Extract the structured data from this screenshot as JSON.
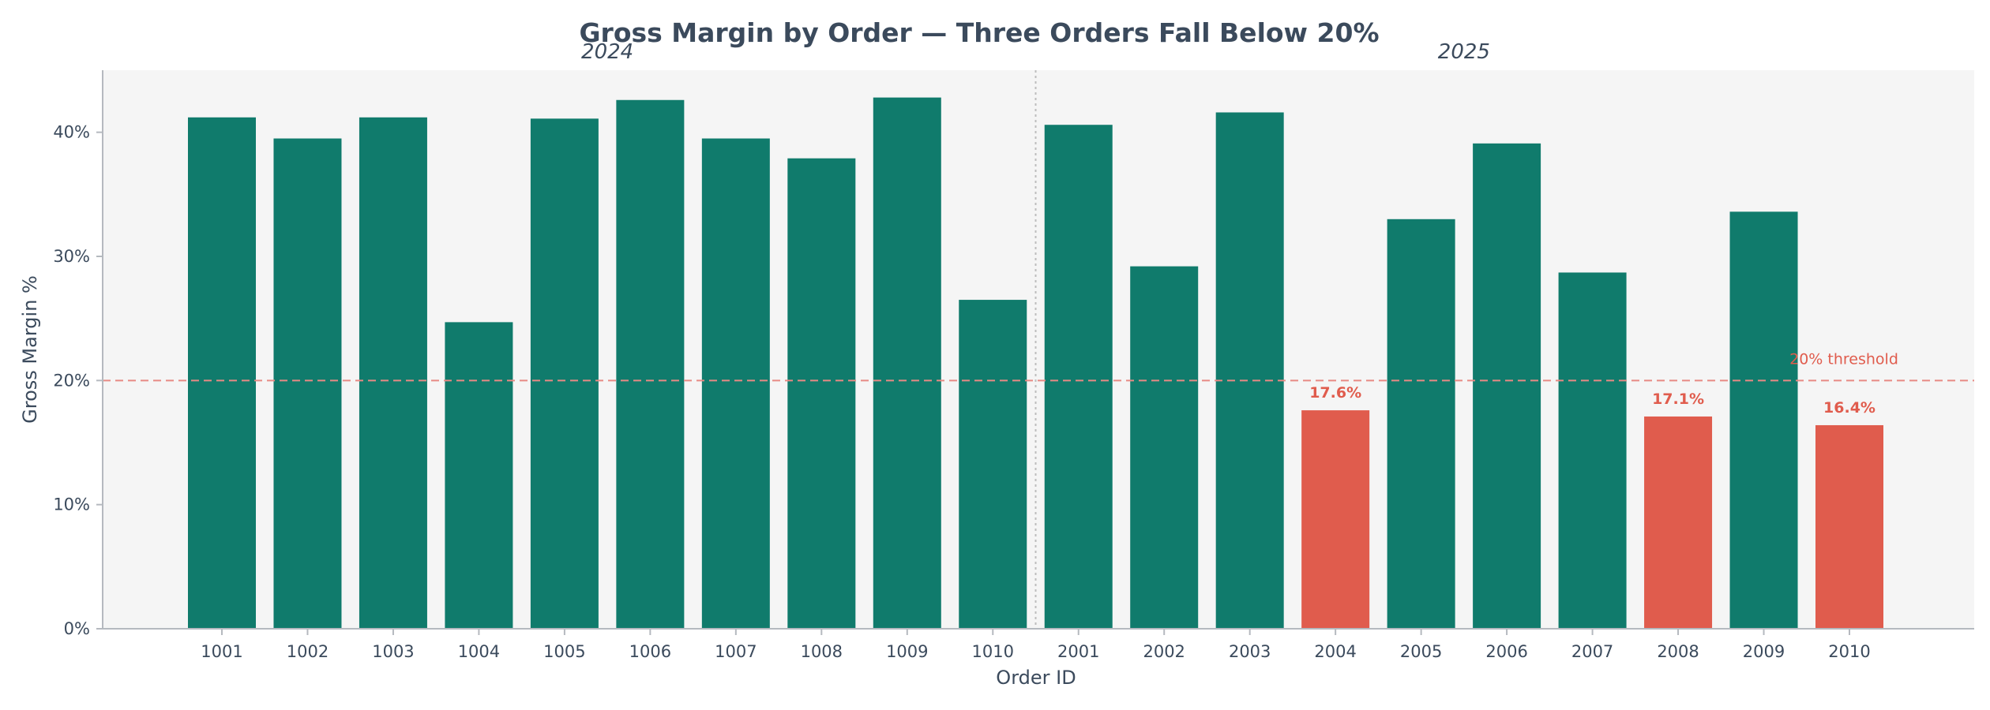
{
  "chart_data": {
    "type": "bar",
    "title": "Gross Margin by Order — Three Orders Fall Below 20%",
    "xlabel": "Order ID",
    "ylabel": "Gross Margin %",
    "ylim": [
      0,
      45
    ],
    "yticks": [
      0,
      10,
      20,
      30,
      40
    ],
    "ytick_labels": [
      "0%",
      "10%",
      "20%",
      "30%",
      "40%"
    ],
    "grid": false,
    "categories": [
      "1001",
      "1002",
      "1003",
      "1004",
      "1005",
      "1006",
      "1007",
      "1008",
      "1009",
      "1010",
      "2001",
      "2002",
      "2003",
      "2004",
      "2005",
      "2006",
      "2007",
      "2008",
      "2009",
      "2010"
    ],
    "values": [
      41.2,
      39.5,
      41.2,
      24.7,
      41.1,
      42.6,
      39.5,
      37.9,
      42.8,
      26.5,
      40.6,
      29.2,
      41.6,
      17.6,
      33.0,
      39.1,
      28.7,
      17.1,
      33.6,
      16.4
    ],
    "groups": [
      {
        "label": "2024",
        "categories": [
          "1001",
          "1002",
          "1003",
          "1004",
          "1005",
          "1006",
          "1007",
          "1008",
          "1009",
          "1010"
        ]
      },
      {
        "label": "2025",
        "categories": [
          "2001",
          "2002",
          "2003",
          "2004",
          "2005",
          "2006",
          "2007",
          "2008",
          "2009",
          "2010"
        ]
      }
    ],
    "threshold": {
      "value": 20,
      "label": "20% threshold"
    },
    "highlighted": [
      {
        "category": "2004",
        "label": "17.6%"
      },
      {
        "category": "2008",
        "label": "17.1%"
      },
      {
        "category": "2010",
        "label": "16.4%"
      }
    ],
    "colors": {
      "bar": "#107b6c",
      "below_threshold": "#e05c4d",
      "threshold_line": "#e88a84",
      "plot_background": "#f5f5f5",
      "axis": "#b5b9bf",
      "text": "#3b4a5c",
      "divider": "#bdbdbd"
    }
  }
}
